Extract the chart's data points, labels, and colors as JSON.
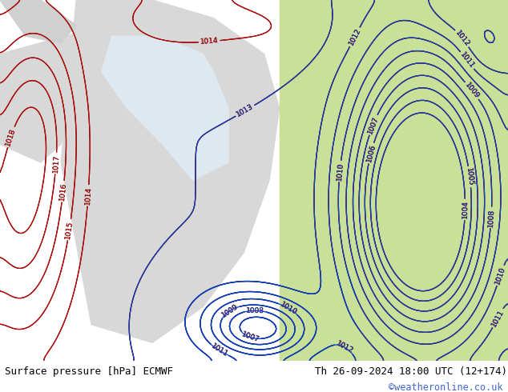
{
  "title_left": "Surface pressure [hPa] ECMWF",
  "title_right": "Th 26-09-2024 18:00 UTC (12+174)",
  "watermark": "©weatheronline.co.uk",
  "bg_color_land": "#a8d878",
  "bg_color_sea": "#d0e8f0",
  "bg_color_land2": "#c8e8a0",
  "text_color_black": "#000000",
  "text_color_red": "#cc0000",
  "text_color_blue": "#0000cc",
  "text_color_watermark": "#4466cc",
  "footer_bg": "#b8d890",
  "contour_black_color": "#000000",
  "contour_red_color": "#cc0000",
  "contour_blue_color": "#0044cc",
  "font_size_footer": 9,
  "font_size_labels": 7,
  "figsize": [
    6.34,
    4.9
  ],
  "dpi": 100
}
